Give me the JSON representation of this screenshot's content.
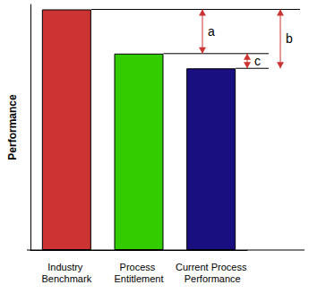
{
  "chart_data": {
    "type": "bar",
    "categories": [
      "Industry Benchmark",
      "Process Entitlement",
      "Current Process Performance"
    ],
    "values": [
      98,
      80,
      74
    ],
    "colors": [
      "#cc3333",
      "#33cc00",
      "#1a0f80"
    ],
    "ylim": [
      0,
      100
    ],
    "ylabel": "Performance",
    "tick_labels": "x",
    "grid": false,
    "annotations": [
      {
        "label": "a",
        "from": "Industry Benchmark",
        "to": "Process Entitlement"
      },
      {
        "label": "b",
        "from": "Industry Benchmark",
        "to": "Current Process Performance"
      },
      {
        "label": "c",
        "from": "Process Entitlement",
        "to": "Current Process Performance"
      }
    ]
  }
}
